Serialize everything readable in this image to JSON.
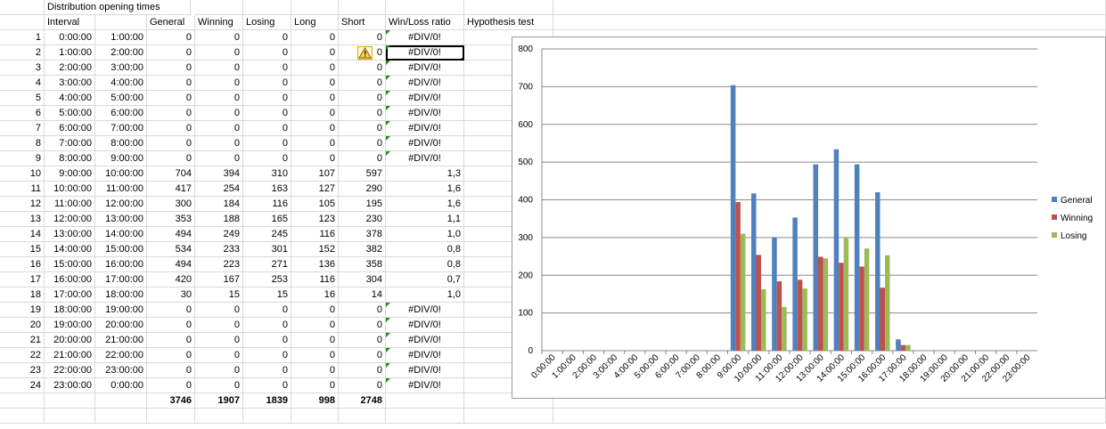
{
  "sheet": {
    "title": "Distribution opening times",
    "headers": [
      "Interval",
      "General",
      "Winning",
      "Losing",
      "Long",
      "Short",
      "Win/Loss ratio",
      "Hypothesis test"
    ],
    "rows": [
      {
        "n": "1",
        "from": "0:00:00",
        "to": "1:00:00",
        "general": "0",
        "winning": "0",
        "losing": "0",
        "long": "0",
        "short": "0",
        "ratio": "#DIV/0!"
      },
      {
        "n": "2",
        "from": "1:00:00",
        "to": "2:00:00",
        "general": "0",
        "winning": "0",
        "losing": "0",
        "long": "0",
        "short": "0",
        "ratio": "#DIV/0!"
      },
      {
        "n": "3",
        "from": "2:00:00",
        "to": "3:00:00",
        "general": "0",
        "winning": "0",
        "losing": "0",
        "long": "0",
        "short": "0",
        "ratio": "#DIV/0!"
      },
      {
        "n": "4",
        "from": "3:00:00",
        "to": "4:00:00",
        "general": "0",
        "winning": "0",
        "losing": "0",
        "long": "0",
        "short": "0",
        "ratio": "#DIV/0!"
      },
      {
        "n": "5",
        "from": "4:00:00",
        "to": "5:00:00",
        "general": "0",
        "winning": "0",
        "losing": "0",
        "long": "0",
        "short": "0",
        "ratio": "#DIV/0!"
      },
      {
        "n": "6",
        "from": "5:00:00",
        "to": "6:00:00",
        "general": "0",
        "winning": "0",
        "losing": "0",
        "long": "0",
        "short": "0",
        "ratio": "#DIV/0!"
      },
      {
        "n": "7",
        "from": "6:00:00",
        "to": "7:00:00",
        "general": "0",
        "winning": "0",
        "losing": "0",
        "long": "0",
        "short": "0",
        "ratio": "#DIV/0!"
      },
      {
        "n": "8",
        "from": "7:00:00",
        "to": "8:00:00",
        "general": "0",
        "winning": "0",
        "losing": "0",
        "long": "0",
        "short": "0",
        "ratio": "#DIV/0!"
      },
      {
        "n": "9",
        "from": "8:00:00",
        "to": "9:00:00",
        "general": "0",
        "winning": "0",
        "losing": "0",
        "long": "0",
        "short": "0",
        "ratio": "#DIV/0!"
      },
      {
        "n": "10",
        "from": "9:00:00",
        "to": "10:00:00",
        "general": "704",
        "winning": "394",
        "losing": "310",
        "long": "107",
        "short": "597",
        "ratio": "1,3"
      },
      {
        "n": "11",
        "from": "10:00:00",
        "to": "11:00:00",
        "general": "417",
        "winning": "254",
        "losing": "163",
        "long": "127",
        "short": "290",
        "ratio": "1,6"
      },
      {
        "n": "12",
        "from": "11:00:00",
        "to": "12:00:00",
        "general": "300",
        "winning": "184",
        "losing": "116",
        "long": "105",
        "short": "195",
        "ratio": "1,6"
      },
      {
        "n": "13",
        "from": "12:00:00",
        "to": "13:00:00",
        "general": "353",
        "winning": "188",
        "losing": "165",
        "long": "123",
        "short": "230",
        "ratio": "1,1"
      },
      {
        "n": "14",
        "from": "13:00:00",
        "to": "14:00:00",
        "general": "494",
        "winning": "249",
        "losing": "245",
        "long": "116",
        "short": "378",
        "ratio": "1,0"
      },
      {
        "n": "15",
        "from": "14:00:00",
        "to": "15:00:00",
        "general": "534",
        "winning": "233",
        "losing": "301",
        "long": "152",
        "short": "382",
        "ratio": "0,8"
      },
      {
        "n": "16",
        "from": "15:00:00",
        "to": "16:00:00",
        "general": "494",
        "winning": "223",
        "losing": "271",
        "long": "136",
        "short": "358",
        "ratio": "0,8"
      },
      {
        "n": "17",
        "from": "16:00:00",
        "to": "17:00:00",
        "general": "420",
        "winning": "167",
        "losing": "253",
        "long": "116",
        "short": "304",
        "ratio": "0,7"
      },
      {
        "n": "18",
        "from": "17:00:00",
        "to": "18:00:00",
        "general": "30",
        "winning": "15",
        "losing": "15",
        "long": "16",
        "short": "14",
        "ratio": "1,0"
      },
      {
        "n": "19",
        "from": "18:00:00",
        "to": "19:00:00",
        "general": "0",
        "winning": "0",
        "losing": "0",
        "long": "0",
        "short": "0",
        "ratio": "#DIV/0!"
      },
      {
        "n": "20",
        "from": "19:00:00",
        "to": "20:00:00",
        "general": "0",
        "winning": "0",
        "losing": "0",
        "long": "0",
        "short": "0",
        "ratio": "#DIV/0!"
      },
      {
        "n": "21",
        "from": "20:00:00",
        "to": "21:00:00",
        "general": "0",
        "winning": "0",
        "losing": "0",
        "long": "0",
        "short": "0",
        "ratio": "#DIV/0!"
      },
      {
        "n": "22",
        "from": "21:00:00",
        "to": "22:00:00",
        "general": "0",
        "winning": "0",
        "losing": "0",
        "long": "0",
        "short": "0",
        "ratio": "#DIV/0!"
      },
      {
        "n": "23",
        "from": "22:00:00",
        "to": "23:00:00",
        "general": "0",
        "winning": "0",
        "losing": "0",
        "long": "0",
        "short": "0",
        "ratio": "#DIV/0!"
      },
      {
        "n": "24",
        "from": "23:00:00",
        "to": "0:00:00",
        "general": "0",
        "winning": "0",
        "losing": "0",
        "long": "0",
        "short": "0",
        "ratio": "#DIV/0!"
      }
    ],
    "totals": {
      "general": "3746",
      "winning": "1907",
      "losing": "1839",
      "long": "998",
      "short": "2748"
    },
    "selected_row": 2,
    "icons": {
      "error_check": "warning-icon",
      "error_triangle": "green-triangle-icon"
    }
  },
  "chart_data": {
    "type": "bar",
    "categories": [
      "0:00:00",
      "1:00:00",
      "2:00:00",
      "3:00:00",
      "4:00:00",
      "5:00:00",
      "6:00:00",
      "7:00:00",
      "8:00:00",
      "9:00:00",
      "10:00:00",
      "11:00:00",
      "12:00:00",
      "13:00:00",
      "14:00:00",
      "15:00:00",
      "16:00:00",
      "17:00:00",
      "18:00:00",
      "19:00:00",
      "20:00:00",
      "21:00:00",
      "22:00:00",
      "23:00:00"
    ],
    "series": [
      {
        "name": "General",
        "color": "#4f81bd",
        "values": [
          0,
          0,
          0,
          0,
          0,
          0,
          0,
          0,
          0,
          704,
          417,
          300,
          353,
          494,
          534,
          494,
          420,
          30,
          0,
          0,
          0,
          0,
          0,
          0
        ]
      },
      {
        "name": "Winning",
        "color": "#c0504d",
        "values": [
          0,
          0,
          0,
          0,
          0,
          0,
          0,
          0,
          0,
          394,
          254,
          184,
          188,
          249,
          233,
          223,
          167,
          15,
          0,
          0,
          0,
          0,
          0,
          0
        ]
      },
      {
        "name": "Losing",
        "color": "#9bbb59",
        "values": [
          0,
          0,
          0,
          0,
          0,
          0,
          0,
          0,
          0,
          310,
          163,
          116,
          165,
          245,
          301,
          271,
          253,
          15,
          0,
          0,
          0,
          0,
          0,
          0
        ]
      }
    ],
    "ylim": [
      0,
      800
    ],
    "yticks": [
      "0",
      "100",
      "200",
      "300",
      "400",
      "500",
      "600",
      "700",
      "800"
    ],
    "grid": true,
    "legend": "right"
  }
}
